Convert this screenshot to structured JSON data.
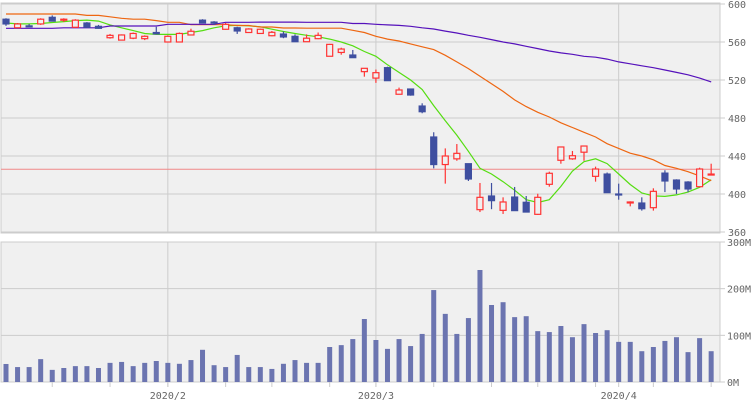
{
  "chart_data": [
    {
      "type": "candlestick",
      "panel": "price",
      "ylim": [
        360,
        600
      ],
      "y_ticks": [
        "600",
        "560",
        "520",
        "480",
        "440",
        "400",
        "360"
      ],
      "y_tick_values": [
        600,
        560,
        520,
        480,
        440,
        400,
        360
      ],
      "grid": true,
      "reference_line": 426,
      "colors": {
        "up": "#ff3333",
        "down": "#3f4fa0",
        "reference": "#f08888",
        "background": "#f0f0f0",
        "grid": "#cccccc"
      },
      "dates": [
        "2020-01-14",
        "2020-01-15",
        "2020-01-16",
        "2020-01-17",
        "2020-01-20",
        "2020-01-21",
        "2020-01-22",
        "2020-01-23",
        "2020-01-24",
        "2020-01-27",
        "2020-01-28",
        "2020-01-29",
        "2020-01-30",
        "2020-01-31",
        "2020-02-03",
        "2020-02-04",
        "2020-02-05",
        "2020-02-06",
        "2020-02-07",
        "2020-02-10",
        "2020-02-12",
        "2020-02-13",
        "2020-02-14",
        "2020-02-17",
        "2020-02-18",
        "2020-02-19",
        "2020-02-20",
        "2020-02-21",
        "2020-02-25",
        "2020-02-26",
        "2020-02-27",
        "2020-02-28",
        "2020-03-02",
        "2020-03-03",
        "2020-03-04",
        "2020-03-05",
        "2020-03-06",
        "2020-03-09",
        "2020-03-10",
        "2020-03-11",
        "2020-03-12",
        "2020-03-13",
        "2020-03-16",
        "2020-03-17",
        "2020-03-18",
        "2020-03-19",
        "2020-03-23",
        "2020-03-24",
        "2020-03-25",
        "2020-03-26",
        "2020-03-27",
        "2020-03-30",
        "2020-03-31",
        "2020-04-01",
        "2020-04-02",
        "2020-04-03",
        "2020-04-06",
        "2020-04-07",
        "2020-04-08",
        "2020-04-09",
        "2020-04-10",
        "2020-04-13"
      ],
      "open": [
        584,
        575,
        577,
        579,
        586,
        583.5,
        575.5,
        580,
        576.5,
        564.5,
        562,
        564,
        563.5,
        570,
        560,
        560,
        567.4,
        583,
        581,
        573.4,
        575,
        570,
        569,
        566.6,
        568.4,
        566,
        560.3,
        563.5,
        545,
        549,
        546.3,
        528.8,
        522,
        533,
        505,
        510.5,
        492.6,
        460,
        431,
        437,
        431.9,
        383.5,
        397.9,
        382.8,
        396.8,
        391.3,
        378.6,
        410.2,
        435.5,
        437,
        444,
        418.6,
        421,
        400,
        391.6,
        390.5,
        385.6,
        422,
        414.7,
        412.6,
        407.7,
        420.5
      ],
      "high": [
        585,
        580,
        579,
        585,
        588,
        585,
        584,
        581,
        578,
        568.5,
        568,
        570,
        567,
        576,
        567,
        570,
        574,
        584,
        582,
        580,
        576,
        574.5,
        574,
        571.6,
        571,
        568,
        568,
        570,
        558,
        554,
        551.6,
        532.5,
        531,
        534,
        512,
        511,
        495.5,
        465,
        448,
        452.6,
        432,
        411.6,
        411.6,
        396.5,
        407.4,
        397.9,
        400.3,
        423.5,
        450,
        445.3,
        451,
        428.8,
        422.6,
        410.9,
        392.3,
        396.5,
        406,
        425,
        415.5,
        413.5,
        427.7,
        431.9
      ],
      "low": [
        577,
        575,
        576,
        578,
        582,
        581,
        575,
        575,
        574,
        563.5,
        562,
        563,
        562,
        568,
        560,
        560,
        567,
        579.5,
        578,
        573,
        568.5,
        570,
        568.8,
        566,
        564,
        560,
        560,
        563,
        545,
        546.6,
        543.5,
        523.5,
        517,
        519,
        505,
        503.5,
        485,
        427,
        410.9,
        435,
        413.7,
        381,
        384,
        379,
        382.5,
        381,
        378,
        407.7,
        431.9,
        436,
        435,
        413,
        401.4,
        394,
        387,
        382.5,
        382.5,
        402,
        400,
        402,
        407.7,
        419.7
      ],
      "close": [
        579,
        579,
        576.5,
        584,
        582,
        584,
        583,
        575.5,
        574.4,
        567,
        567.4,
        569,
        566,
        568.5,
        566,
        569,
        571.3,
        580,
        580.5,
        578.6,
        571.6,
        573.7,
        573.4,
        570.2,
        565.3,
        560.3,
        564,
        567,
        557.5,
        552.6,
        543.5,
        532.3,
        527.7,
        519.3,
        509.5,
        504.2,
        486.6,
        431,
        440,
        442.8,
        415.8,
        396.5,
        393,
        391.6,
        382.5,
        381,
        396.5,
        421.8,
        449.5,
        440.3,
        450.5,
        426.3,
        401.4,
        399.7,
        391.6,
        384.5,
        402.8,
        413.7,
        405.3,
        405.3,
        426.3,
        421
      ],
      "moving_averages": [
        {
          "color": "#55dd11",
          "values": [
            580,
            579,
            579,
            579.5,
            580.5,
            581.5,
            582.5,
            583,
            582,
            578,
            575,
            572,
            569,
            568,
            568,
            568,
            570,
            572,
            575,
            577,
            577.5,
            577,
            576,
            573.5,
            571,
            569,
            567,
            565.5,
            563,
            560,
            556,
            550,
            545,
            536,
            528,
            520,
            510,
            493,
            477,
            462,
            445,
            427,
            421,
            413,
            404,
            394,
            391,
            394,
            408,
            424,
            434,
            437,
            432,
            421,
            410,
            401,
            398,
            397.5,
            399,
            402,
            407,
            415
          ]
        },
        {
          "color": "#ee6611",
          "values": [
            589.5,
            589.5,
            589.5,
            589.5,
            589.5,
            589.5,
            589.5,
            588,
            588,
            586.5,
            585,
            584,
            584,
            582.5,
            580.7,
            580.7,
            578.2,
            578.2,
            578.2,
            578.2,
            577.4,
            577.4,
            575.8,
            575.8,
            574.7,
            574.7,
            574.5,
            574.5,
            574.5,
            574.5,
            572.3,
            570,
            566,
            563,
            561,
            558,
            555,
            552,
            546,
            539,
            532,
            524,
            516,
            508,
            499,
            492,
            486,
            481,
            475,
            470,
            465,
            460,
            453,
            448,
            443,
            440,
            436,
            430,
            427,
            423.5,
            419,
            414
          ]
        },
        {
          "color": "#5511bb",
          "values": [
            574.4,
            574.4,
            574.4,
            574.4,
            574.4,
            575,
            575,
            575,
            575,
            576.8,
            576.8,
            576.8,
            576.8,
            576.8,
            578.6,
            578.6,
            578.6,
            578.6,
            578.6,
            580.7,
            580.7,
            580.7,
            581,
            581,
            581,
            581,
            580.7,
            580.7,
            580.7,
            580.7,
            579.5,
            579.5,
            578.6,
            578,
            577.5,
            576.5,
            575,
            573.7,
            571.5,
            569.5,
            567,
            565,
            562.5,
            560,
            558,
            555.5,
            553,
            550.5,
            548.5,
            547,
            545,
            544,
            542,
            539,
            537,
            535,
            533,
            530.5,
            528,
            525.5,
            522,
            518
          ]
        }
      ]
    },
    {
      "type": "bar",
      "panel": "volume",
      "ylim": [
        0,
        300
      ],
      "y_ticks": [
        "300M",
        "200M",
        "100M",
        "0M"
      ],
      "y_tick_values": [
        300,
        200,
        100,
        0
      ],
      "unit": "M",
      "color": "#6b74b0",
      "values": [
        38.6,
        32,
        32,
        49,
        26,
        30,
        34,
        34,
        30,
        41,
        43,
        34,
        41,
        45,
        41,
        39,
        47,
        69,
        36,
        32,
        58,
        32,
        32,
        28,
        39,
        47,
        41,
        41,
        75,
        79,
        92,
        135,
        90,
        71,
        92,
        77,
        103,
        197,
        146,
        103,
        137,
        240,
        165,
        171,
        139,
        141,
        109,
        107,
        120,
        96,
        124,
        105,
        111,
        86,
        86,
        66,
        75,
        88,
        96,
        64,
        94,
        66
      ]
    }
  ],
  "x_axis": {
    "labels": [
      {
        "text": "2020/2",
        "index": 14
      },
      {
        "text": "2020/3",
        "index": 32
      },
      {
        "text": "2020/4",
        "index": 53
      }
    ],
    "week_tick_indices": [
      4,
      9,
      14,
      19,
      23,
      28,
      32,
      37,
      42,
      46,
      51,
      56,
      61
    ]
  }
}
